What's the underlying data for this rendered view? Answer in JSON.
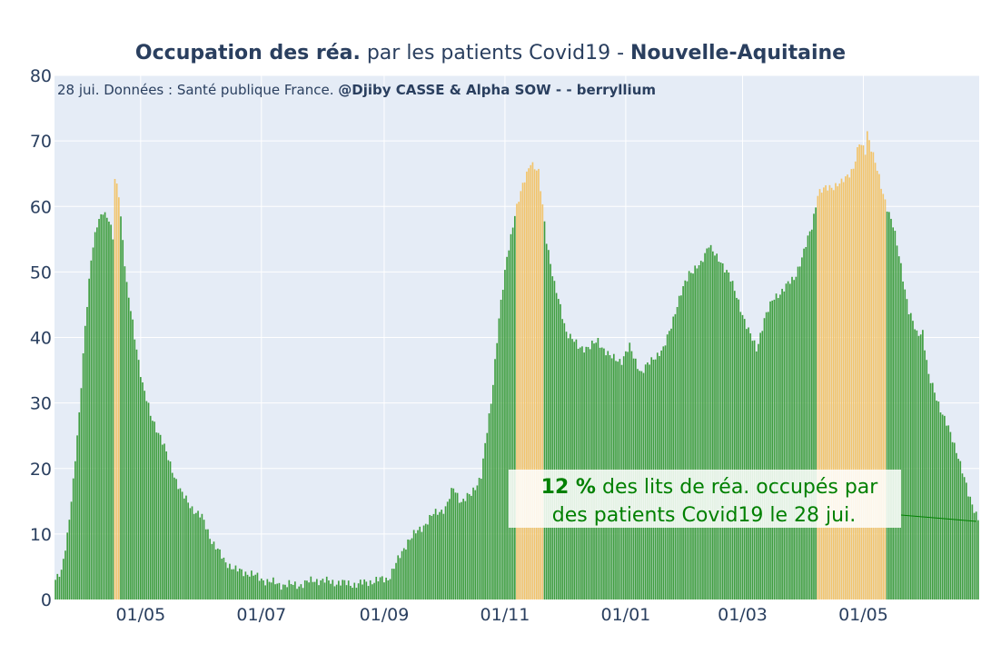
{
  "title": {
    "part1": "Occupation des réa.",
    "part2": " par les patients Covid19 - ",
    "part3": "Nouvelle-Aquitaine"
  },
  "subtitle": {
    "normal": "28 jui. Données : Santé publique France. ",
    "bold": "@Djiby CASSE & Alpha SOW -  - berryllium"
  },
  "annotation": {
    "value": "12  %",
    "line1_rest": " des lits de réa. occupés par",
    "line2": "des patients Covid19 le 28 jui."
  },
  "colors": {
    "plot_bg": "#e5ecf6",
    "grid": "#ffffff",
    "bar_normal": "#3f9e3f",
    "bar_highlight": "#f2c46b",
    "annotation_text": "#008000",
    "annotation_bg": "#ffffff",
    "text": "#2a3f5f"
  },
  "chart_data": {
    "type": "bar",
    "title": "Occupation des réa. par les patients Covid19 - Nouvelle-Aquitaine",
    "x_start": "2020-03-19",
    "x_end": "2021-06-28",
    "ylim": [
      0,
      80
    ],
    "yticks": [
      0,
      10,
      20,
      30,
      40,
      50,
      60,
      70,
      80
    ],
    "xticks": [
      {
        "date": "2020-05-01",
        "label": "01/05"
      },
      {
        "date": "2020-07-01",
        "label": "01/07"
      },
      {
        "date": "2020-09-01",
        "label": "01/09"
      },
      {
        "date": "2020-11-01",
        "label": "01/11"
      },
      {
        "date": "2021-01-01",
        "label": "01/01"
      },
      {
        "date": "2021-03-01",
        "label": "01/03"
      },
      {
        "date": "2021-05-01",
        "label": "01/05"
      }
    ],
    "grid": true,
    "highlight_threshold": 60,
    "anchors": [
      [
        "2020-03-19",
        3
      ],
      [
        "2020-03-22",
        4
      ],
      [
        "2020-03-25",
        10
      ],
      [
        "2020-03-28",
        18
      ],
      [
        "2020-03-31",
        28
      ],
      [
        "2020-04-03",
        42
      ],
      [
        "2020-04-06",
        52
      ],
      [
        "2020-04-09",
        57
      ],
      [
        "2020-04-12",
        59.5
      ],
      [
        "2020-04-15",
        58
      ],
      [
        "2020-04-17",
        55
      ],
      [
        "2020-04-18",
        64
      ],
      [
        "2020-04-20",
        62
      ],
      [
        "2020-04-22",
        55
      ],
      [
        "2020-04-24",
        48
      ],
      [
        "2020-04-28",
        40
      ],
      [
        "2020-05-02",
        33
      ],
      [
        "2020-05-06",
        28
      ],
      [
        "2020-05-11",
        25
      ],
      [
        "2020-05-16",
        20.5
      ],
      [
        "2020-05-22",
        16
      ],
      [
        "2020-05-27",
        14
      ],
      [
        "2020-06-01",
        12.5
      ],
      [
        "2020-06-06",
        9
      ],
      [
        "2020-06-12",
        6
      ],
      [
        "2020-06-18",
        4.5
      ],
      [
        "2020-06-25",
        4
      ],
      [
        "2020-07-02",
        3
      ],
      [
        "2020-07-10",
        2.3
      ],
      [
        "2020-07-20",
        2.2
      ],
      [
        "2020-07-28",
        3
      ],
      [
        "2020-08-08",
        2.6
      ],
      [
        "2020-08-18",
        2.3
      ],
      [
        "2020-08-26",
        2.8
      ],
      [
        "2020-09-03",
        3.2
      ],
      [
        "2020-09-08",
        6
      ],
      [
        "2020-09-13",
        9
      ],
      [
        "2020-09-20",
        11
      ],
      [
        "2020-09-26",
        13
      ],
      [
        "2020-10-02",
        14
      ],
      [
        "2020-10-06",
        17
      ],
      [
        "2020-10-10",
        15
      ],
      [
        "2020-10-15",
        16
      ],
      [
        "2020-10-20",
        19
      ],
      [
        "2020-10-25",
        30
      ],
      [
        "2020-10-29",
        43
      ],
      [
        "2020-11-02",
        52
      ],
      [
        "2020-11-06",
        59
      ],
      [
        "2020-11-10",
        63
      ],
      [
        "2020-11-14",
        67
      ],
      [
        "2020-11-18",
        65
      ],
      [
        "2020-11-22",
        55
      ],
      [
        "2020-11-26",
        48
      ],
      [
        "2020-12-02",
        41
      ],
      [
        "2020-12-08",
        38.5
      ],
      [
        "2020-12-14",
        38.5
      ],
      [
        "2020-12-18",
        39.5
      ],
      [
        "2020-12-24",
        37
      ],
      [
        "2020-12-30",
        36.5
      ],
      [
        "2021-01-03",
        38.5
      ],
      [
        "2021-01-09",
        34.5
      ],
      [
        "2021-01-15",
        37
      ],
      [
        "2021-01-20",
        38
      ],
      [
        "2021-01-26",
        44
      ],
      [
        "2021-02-02",
        50
      ],
      [
        "2021-02-08",
        51
      ],
      [
        "2021-02-12",
        54.5
      ],
      [
        "2021-02-16",
        52
      ],
      [
        "2021-02-22",
        50
      ],
      [
        "2021-02-26",
        46
      ],
      [
        "2021-03-03",
        42
      ],
      [
        "2021-03-08",
        38
      ],
      [
        "2021-03-12",
        43
      ],
      [
        "2021-03-17",
        46
      ],
      [
        "2021-03-22",
        47.5
      ],
      [
        "2021-03-27",
        49
      ],
      [
        "2021-04-01",
        53
      ],
      [
        "2021-04-05",
        57
      ],
      [
        "2021-04-08",
        62
      ],
      [
        "2021-04-14",
        63
      ],
      [
        "2021-04-20",
        63.5
      ],
      [
        "2021-04-26",
        66
      ],
      [
        "2021-04-29",
        69.5
      ],
      [
        "2021-05-02",
        68.5
      ],
      [
        "2021-05-03",
        71.5
      ],
      [
        "2021-05-05",
        69
      ],
      [
        "2021-05-10",
        63
      ],
      [
        "2021-05-16",
        57
      ],
      [
        "2021-05-20",
        51
      ],
      [
        "2021-05-24",
        44
      ],
      [
        "2021-05-28",
        40.5
      ],
      [
        "2021-05-31",
        41
      ],
      [
        "2021-06-03",
        34
      ],
      [
        "2021-06-08",
        30
      ],
      [
        "2021-06-13",
        26
      ],
      [
        "2021-06-18",
        22
      ],
      [
        "2021-06-23",
        16
      ],
      [
        "2021-06-28",
        12.5
      ]
    ]
  }
}
